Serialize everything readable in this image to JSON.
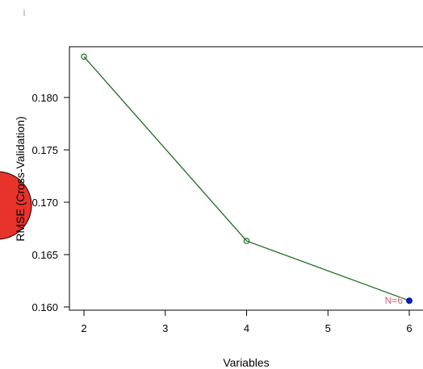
{
  "colors": {
    "line": "#1f6b1f",
    "highlight_point": "#0a1fb0",
    "annotation": "#d4607a",
    "overlay_circle": "#e8332a"
  },
  "chart_data": {
    "type": "line",
    "title": "",
    "xlabel": "Variables",
    "ylabel": "RMSE (Cross-Validation)",
    "xlim": [
      2,
      6
    ],
    "ylim": [
      0.16,
      0.184
    ],
    "x_ticks": [
      2,
      3,
      4,
      5,
      6
    ],
    "x_tick_labels": [
      "2",
      "3",
      "4",
      "5",
      "6"
    ],
    "y_ticks": [
      0.16,
      0.165,
      0.17,
      0.175,
      0.18
    ],
    "y_tick_labels": [
      "0.160",
      "0.165",
      "0.170",
      "0.175",
      "0.180"
    ],
    "grid": false,
    "series": [
      {
        "x": [
          2,
          4,
          6
        ],
        "y": [
          0.1839,
          0.1663,
          0.1606
        ]
      }
    ],
    "highlight": {
      "x": 6,
      "y": 0.1606,
      "label": "N=6"
    }
  }
}
